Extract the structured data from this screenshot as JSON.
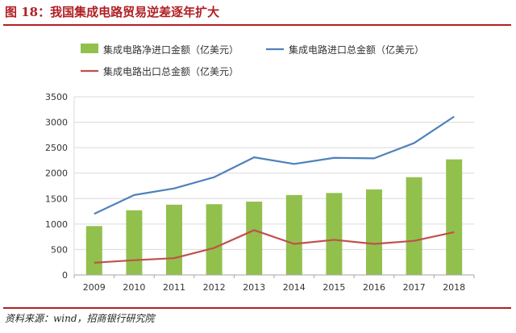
{
  "figure": {
    "title": "图 18：我国集成电路贸易逆差逐年扩大",
    "source": "资料来源：wind，招商银行研究院"
  },
  "colors": {
    "net_import": "#92c04d",
    "import": "#4f81bd",
    "export": "#c0504d",
    "brand_red": "#b11f24"
  },
  "chart_data": {
    "type": "bar",
    "categories": [
      "2009",
      "2010",
      "2011",
      "2012",
      "2013",
      "2014",
      "2015",
      "2016",
      "2017",
      "2018"
    ],
    "series": [
      {
        "name": "集成电路净进口金额（亿美元）",
        "kind": "bar",
        "values": [
          960,
          1270,
          1380,
          1390,
          1440,
          1570,
          1610,
          1680,
          1920,
          2270
        ]
      },
      {
        "name": "集成电路进口总金额（亿美元）",
        "kind": "line",
        "values": [
          1200,
          1570,
          1700,
          1920,
          2310,
          2180,
          2300,
          2290,
          2590,
          3110
        ]
      },
      {
        "name": "集成电路出口总金额（亿美元）",
        "kind": "line",
        "values": [
          240,
          290,
          330,
          530,
          880,
          610,
          690,
          610,
          670,
          840
        ]
      }
    ],
    "ylim": [
      0,
      3500
    ],
    "yticks": [
      0,
      500,
      1000,
      1500,
      2000,
      2500,
      3000,
      3500
    ],
    "grid": true,
    "legend_position": "top"
  }
}
